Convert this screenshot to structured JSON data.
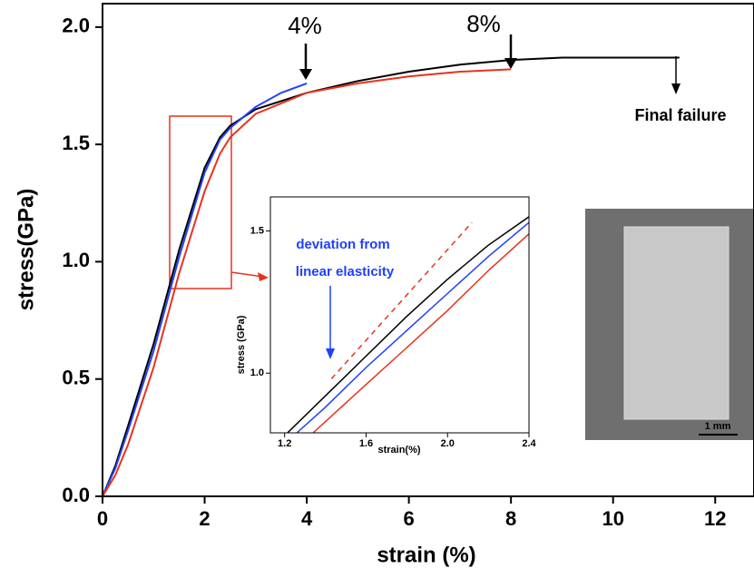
{
  "chart_data": [
    {
      "type": "line",
      "xlabel": "strain (%)",
      "ylabel": "stress(GPa)",
      "xlim": [
        0,
        12.76
      ],
      "ylim": [
        0,
        2.1
      ],
      "xticks": [
        0,
        2,
        4,
        6,
        8,
        10,
        12
      ],
      "yticks": [
        {
          "value": 0,
          "label": "0.0"
        },
        {
          "value": 0.5,
          "label": "0.5"
        },
        {
          "value": 1,
          "label": "1.0"
        },
        {
          "value": 1.5,
          "label": "1.5"
        },
        {
          "value": 2,
          "label": "2.0"
        }
      ],
      "annotations": [
        "4%",
        "8%",
        "Final failure"
      ],
      "series": [
        {
          "color": "#000000",
          "x": [
            0,
            0.25,
            0.5,
            1,
            1.5,
            2,
            2.3,
            2.5,
            3,
            4,
            5,
            6,
            7,
            8,
            9,
            10,
            11,
            11.3
          ],
          "values": [
            0,
            0.13,
            0.3,
            0.65,
            1.05,
            1.4,
            1.53,
            1.58,
            1.65,
            1.72,
            1.77,
            1.81,
            1.84,
            1.86,
            1.87,
            1.87,
            1.87,
            1.87
          ]
        },
        {
          "color": "#1f3fff",
          "x": [
            0,
            0.25,
            0.5,
            1,
            1.5,
            2,
            2.3,
            2.5,
            3,
            3.5,
            4
          ],
          "values": [
            0,
            0.12,
            0.28,
            0.62,
            1.02,
            1.38,
            1.52,
            1.57,
            1.66,
            1.72,
            1.76
          ]
        },
        {
          "color": "#e8321e",
          "x": [
            0,
            0.25,
            0.5,
            1,
            1.5,
            2,
            2.3,
            2.5,
            3,
            4,
            5,
            6,
            7,
            8
          ],
          "values": [
            0,
            0.09,
            0.22,
            0.55,
            0.95,
            1.3,
            1.46,
            1.53,
            1.63,
            1.72,
            1.76,
            1.79,
            1.81,
            1.82
          ]
        }
      ]
    },
    {
      "type": "line",
      "xlabel": "strain(%)",
      "ylabel": "stress (GPa)",
      "xlim": [
        1.13,
        2.4
      ],
      "ylim": [
        0.79,
        1.62
      ],
      "xticks": [
        1.2,
        1.6,
        {
          "value": 2,
          "label": "2.0"
        },
        2.4
      ],
      "yticks": [
        {
          "value": 1,
          "label": "1.0"
        },
        1.5
      ],
      "annotations": [
        "deviation from",
        "linear elasticity"
      ],
      "series": [
        {
          "color": "#000000",
          "x": [
            1.2,
            1.4,
            1.6,
            1.8,
            2.0,
            2.2,
            2.4
          ],
          "values": [
            0.78,
            0.92,
            1.06,
            1.2,
            1.33,
            1.45,
            1.55
          ]
        },
        {
          "color": "#1f3fff",
          "x": [
            1.26,
            1.4,
            1.6,
            1.8,
            2.0,
            2.2,
            2.4
          ],
          "values": [
            0.79,
            0.88,
            1.02,
            1.15,
            1.28,
            1.41,
            1.53
          ]
        },
        {
          "color": "#e8321e",
          "x": [
            1.34,
            1.6,
            1.8,
            2.0,
            2.2,
            2.4
          ],
          "values": [
            0.79,
            0.96,
            1.09,
            1.22,
            1.36,
            1.49
          ]
        },
        {
          "color": "#e8321e",
          "dashed": true,
          "x": [
            1.43,
            2.12
          ],
          "values": [
            0.98,
            1.53
          ]
        }
      ]
    }
  ],
  "image_label": "1 mm"
}
